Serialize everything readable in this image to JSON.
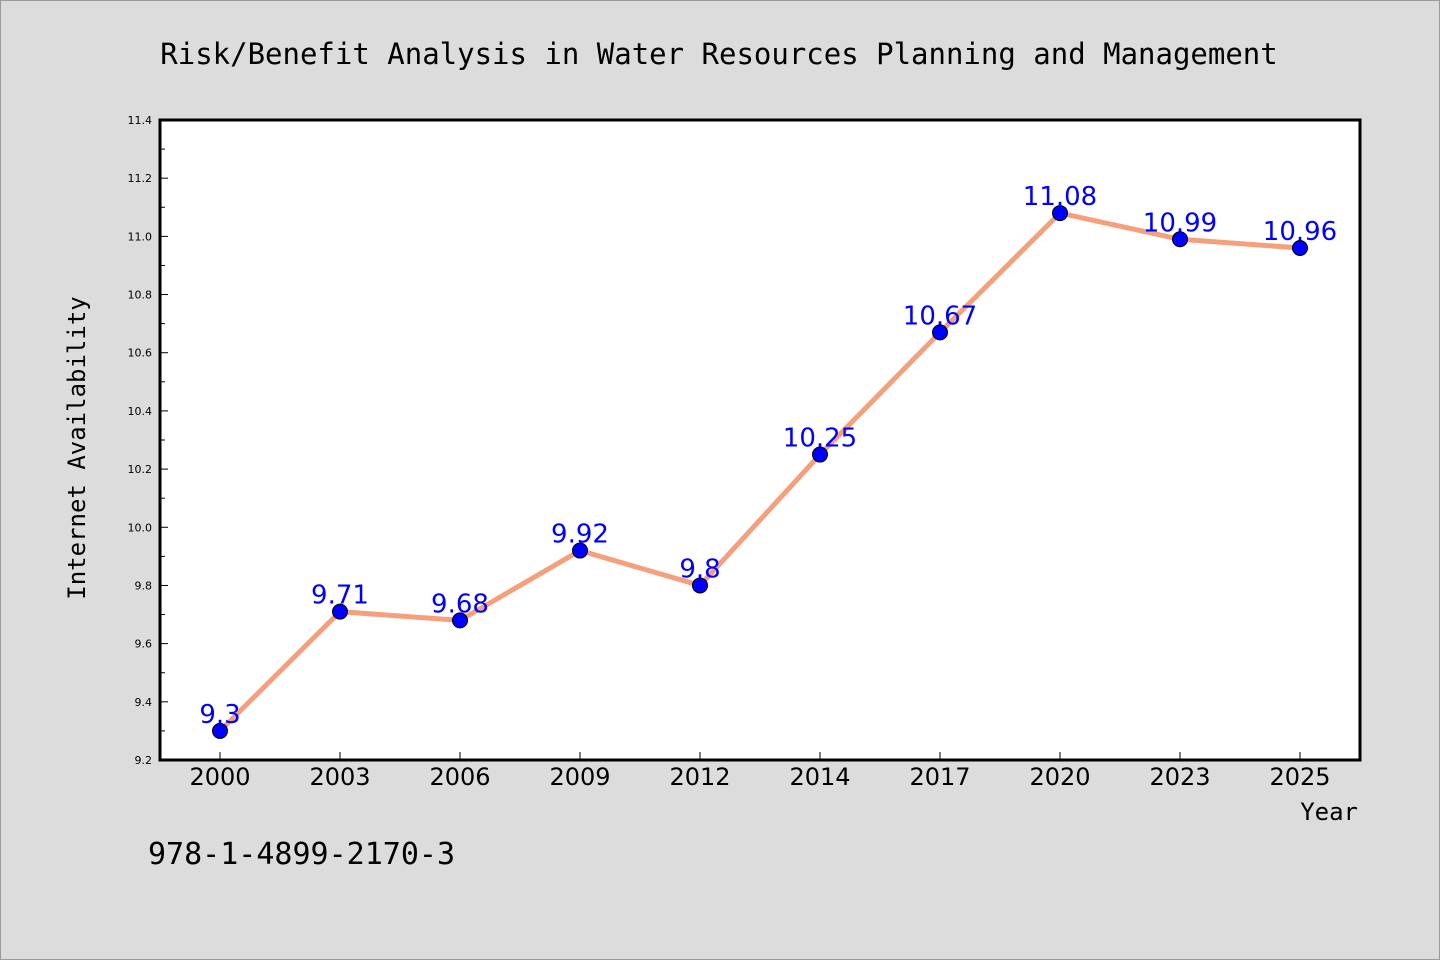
{
  "footer_code": "978-1-4899-2170-3",
  "colors": {
    "background": "#dcdcdc",
    "plot_background": "#ffffff",
    "line": "#f4a07c",
    "marker": "#0000ff",
    "data_label": "#0000ff"
  },
  "chart_data": {
    "type": "line",
    "title": "Risk/Benefit Analysis in Water Resources Planning and Management",
    "xlabel": "Year",
    "ylabel": "Internet Availability",
    "categories": [
      "2000",
      "2003",
      "2006",
      "2009",
      "2012",
      "2014",
      "2017",
      "2020",
      "2023",
      "2025"
    ],
    "series": [
      {
        "values": [
          9.3,
          9.71,
          9.68,
          9.92,
          9.8,
          10.25,
          10.67,
          11.08,
          10.99,
          10.96
        ],
        "labels": [
          "9.3",
          "9.71",
          "9.68",
          "9.92",
          "9.8",
          "10.25",
          "10.67",
          "11.08",
          "10.99",
          "10.96"
        ]
      }
    ],
    "ylim": [
      9.2,
      11.4
    ],
    "yticks": [
      "9.2",
      "9.4",
      "9.6",
      "9.8",
      "10.0",
      "10.2",
      "10.4",
      "10.6",
      "10.8",
      "11.0",
      "11.2",
      "11.4"
    ],
    "grid": false,
    "legend": "none"
  }
}
